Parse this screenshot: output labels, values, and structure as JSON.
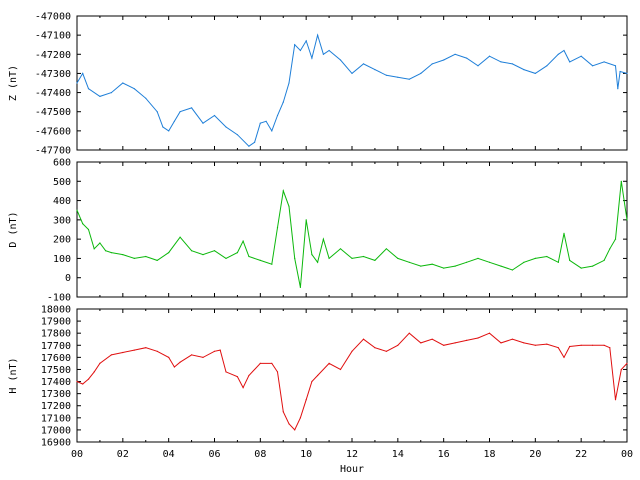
{
  "chart_data": [
    {
      "type": "line",
      "ylabel": "Z (nT)",
      "ylim": [
        -47700,
        -47000
      ],
      "yticks": [
        "-47000",
        "-47100",
        "-47200",
        "-47300",
        "-47400",
        "-47500",
        "-47600",
        "-47700"
      ],
      "color": "#1f7fd8",
      "series": [
        {
          "x": [
            0,
            0.25,
            0.5,
            1,
            1.5,
            2,
            2.5,
            3,
            3.5,
            3.75,
            4,
            4.25,
            4.5,
            5,
            5.5,
            6,
            6.5,
            7,
            7.5,
            7.75,
            8,
            8.25,
            8.5,
            8.75,
            9,
            9.25,
            9.5,
            9.75,
            10,
            10.25,
            10.5,
            10.75,
            11,
            11.5,
            12,
            12.5,
            13,
            13.5,
            14,
            14.5,
            15,
            15.5,
            16,
            16.5,
            17,
            17.5,
            18,
            18.5,
            19,
            19.5,
            20,
            20.5,
            21,
            21.25,
            21.5,
            22,
            22.5,
            23,
            23.5,
            23.6,
            23.7,
            24
          ],
          "y": [
            -47350,
            -47300,
            -47380,
            -47420,
            -47400,
            -47350,
            -47380,
            -47430,
            -47500,
            -47580,
            -47600,
            -47550,
            -47500,
            -47480,
            -47560,
            -47520,
            -47580,
            -47620,
            -47680,
            -47660,
            -47560,
            -47550,
            -47600,
            -47520,
            -47450,
            -47350,
            -47150,
            -47180,
            -47130,
            -47220,
            -47100,
            -47200,
            -47180,
            -47230,
            -47300,
            -47250,
            -47280,
            -47310,
            -47320,
            -47330,
            -47300,
            -47250,
            -47230,
            -47200,
            -47220,
            -47260,
            -47210,
            -47240,
            -47250,
            -47280,
            -47300,
            -47260,
            -47200,
            -47180,
            -47240,
            -47210,
            -47260,
            -47240,
            -47260,
            -47380,
            -47290,
            -47300
          ]
        }
      ]
    },
    {
      "type": "line",
      "ylabel": "D (nT)",
      "ylim": [
        -100,
        600
      ],
      "yticks": [
        "600",
        "500",
        "400",
        "300",
        "200",
        "100",
        "0",
        "-100"
      ],
      "color": "#0cb80c",
      "series": [
        {
          "x": [
            0,
            0.25,
            0.5,
            0.75,
            1,
            1.25,
            1.5,
            2,
            2.5,
            3,
            3.5,
            4,
            4.5,
            5,
            5.5,
            6,
            6.5,
            7,
            7.25,
            7.5,
            8,
            8.5,
            8.75,
            9,
            9.25,
            9.5,
            9.75,
            10,
            10.25,
            10.5,
            10.75,
            11,
            11.5,
            12,
            12.5,
            13,
            13.5,
            14,
            14.5,
            15,
            15.5,
            16,
            16.5,
            17,
            17.5,
            18,
            18.5,
            19,
            19.5,
            20,
            20.5,
            21,
            21.25,
            21.5,
            22,
            22.5,
            23,
            23.25,
            23.5,
            23.75,
            24
          ],
          "y": [
            350,
            280,
            250,
            150,
            180,
            140,
            130,
            120,
            100,
            110,
            90,
            130,
            210,
            140,
            120,
            140,
            100,
            130,
            190,
            110,
            90,
            70,
            260,
            450,
            370,
            100,
            -50,
            300,
            120,
            80,
            200,
            100,
            150,
            100,
            110,
            90,
            150,
            100,
            80,
            60,
            70,
            50,
            60,
            80,
            100,
            80,
            60,
            40,
            80,
            100,
            110,
            80,
            230,
            90,
            50,
            60,
            90,
            150,
            200,
            500,
            300
          ]
        }
      ]
    },
    {
      "type": "line",
      "ylabel": "H (nT)",
      "ylim": [
        16900,
        18000
      ],
      "yticks": [
        "18000",
        "17900",
        "17800",
        "17700",
        "17600",
        "17500",
        "17400",
        "17300",
        "17200",
        "17100",
        "17000",
        "16900"
      ],
      "xlabel": "Hour",
      "xticks": [
        "00",
        "02",
        "04",
        "06",
        "08",
        "10",
        "12",
        "14",
        "16",
        "18",
        "20",
        "22",
        "00"
      ],
      "xlim": [
        0,
        24
      ],
      "color": "#e01010",
      "series": [
        {
          "x": [
            0,
            0.25,
            0.5,
            0.75,
            1,
            1.5,
            2,
            2.5,
            3,
            3.5,
            4,
            4.25,
            4.5,
            5,
            5.5,
            6,
            6.25,
            6.5,
            7,
            7.25,
            7.5,
            8,
            8.5,
            8.75,
            9,
            9.25,
            9.5,
            9.75,
            10,
            10.25,
            10.5,
            11,
            11.5,
            12,
            12.5,
            13,
            13.5,
            14,
            14.5,
            15,
            15.5,
            16,
            16.5,
            17,
            17.5,
            18,
            18.5,
            19,
            19.5,
            20,
            20.5,
            21,
            21.25,
            21.5,
            22,
            22.5,
            23,
            23.25,
            23.5,
            23.75,
            24
          ],
          "y": [
            17400,
            17380,
            17420,
            17480,
            17550,
            17620,
            17640,
            17660,
            17680,
            17650,
            17600,
            17520,
            17560,
            17620,
            17600,
            17650,
            17660,
            17480,
            17440,
            17350,
            17450,
            17550,
            17550,
            17480,
            17150,
            17050,
            17000,
            17100,
            17250,
            17400,
            17450,
            17550,
            17500,
            17650,
            17750,
            17680,
            17650,
            17700,
            17800,
            17720,
            17750,
            17700,
            17720,
            17740,
            17760,
            17800,
            17720,
            17750,
            17720,
            17700,
            17710,
            17680,
            17600,
            17690,
            17700,
            17700,
            17700,
            17680,
            17250,
            17500,
            17550
          ]
        }
      ]
    }
  ]
}
